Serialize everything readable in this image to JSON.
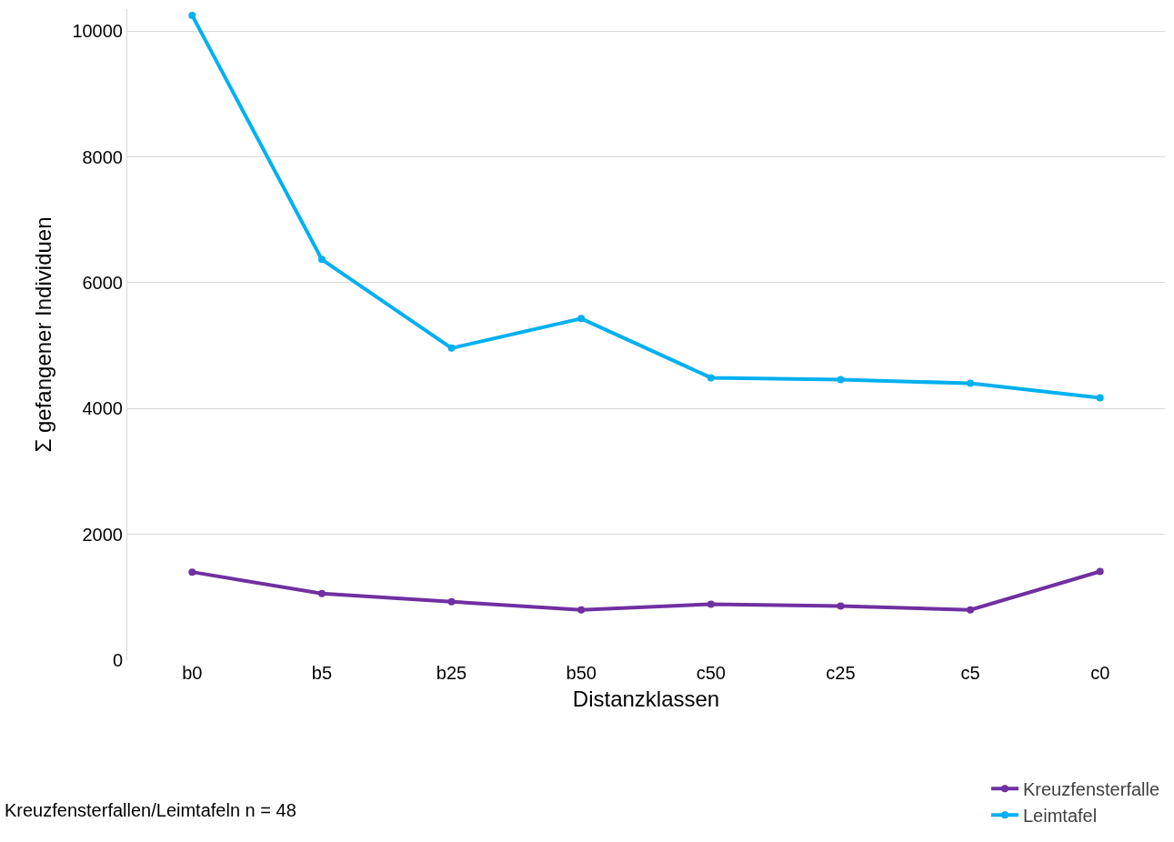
{
  "chart_data": {
    "type": "line",
    "xlabel": "Distanzklassen",
    "ylabel": "Σ gefangener Individuen",
    "categories": [
      "b0",
      "b5",
      "b25",
      "b50",
      "c50",
      "c25",
      "c5",
      "c0"
    ],
    "series": [
      {
        "name": "Kreuzfensterfalle",
        "color": "#7030a0",
        "values": [
          1400,
          1060,
          930,
          800,
          890,
          860,
          800,
          1410
        ]
      },
      {
        "name": "Leimtafel",
        "color": "#00b0f0",
        "values": [
          10250,
          6370,
          4960,
          5430,
          4490,
          4460,
          4400,
          4170
        ]
      }
    ],
    "ylim": [
      0,
      10350
    ],
    "yticks": [
      0,
      2000,
      4000,
      6000,
      8000,
      10000
    ],
    "grid": "y",
    "legend": "bottom right",
    "marker": "circle",
    "line_style": "solid",
    "annotations": [
      "Kreuzfensterfallen/Leimtafeln n = 48"
    ]
  }
}
